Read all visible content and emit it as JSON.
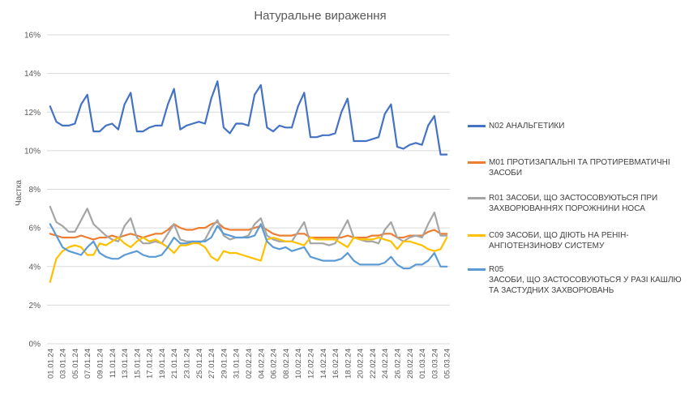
{
  "chart_data": {
    "type": "line",
    "title": "Натуральне вираження",
    "xlabel": "",
    "ylabel": "Частка",
    "ylim": [
      0,
      16
    ],
    "yticks": [
      "0%",
      "2%",
      "4%",
      "6%",
      "8%",
      "10%",
      "12%",
      "14%",
      "16%"
    ],
    "grid": true,
    "legend": "right",
    "x": [
      "01.01.2024",
      "02.01.2024",
      "03.01.2024",
      "04.01.2024",
      "05.01.2024",
      "06.01.2024",
      "07.01.2024",
      "08.01.2024",
      "09.01.2024",
      "10.01.2024",
      "11.01.2024",
      "12.01.2024",
      "13.01.2024",
      "14.01.2024",
      "15.01.2024",
      "16.01.2024",
      "17.01.2024",
      "18.01.2024",
      "19.01.2024",
      "20.01.2024",
      "21.01.2024",
      "22.01.2024",
      "23.01.2024",
      "24.01.2024",
      "25.01.2024",
      "26.01.2024",
      "27.01.2024",
      "28.01.2024",
      "29.01.2024",
      "30.01.2024",
      "31.01.2024",
      "01.02.2024",
      "02.02.2024",
      "03.02.2024",
      "04.02.2024",
      "05.02.2024",
      "06.02.2024",
      "07.02.2024",
      "08.02.2024",
      "09.02.2024",
      "10.02.2024",
      "11.02.2024",
      "12.02.2024",
      "13.02.2024",
      "14.02.2024",
      "15.02.2024",
      "16.02.2024",
      "17.02.2024",
      "18.02.2024",
      "19.02.2024",
      "20.02.2024",
      "21.02.2024",
      "22.02.2024",
      "23.02.2024",
      "24.02.2024",
      "25.02.2024",
      "26.02.2024",
      "27.02.2024",
      "28.02.2024",
      "29.02.2024",
      "01.03.2024",
      "02.03.2024",
      "03.03.2024",
      "04.03.2024",
      "05.03.2024"
    ],
    "x_tick_labels": [
      "01.01.24",
      "03.01.24",
      "05.01.24",
      "07.01.24",
      "09.01.24",
      "11.01.24",
      "13.01.24",
      "15.01.24",
      "17.01.24",
      "19.01.24",
      "21.01.24",
      "23.01.24",
      "25.01.24",
      "27.01.24",
      "29.01.24",
      "31.01.24",
      "02.02.24",
      "04.02.24",
      "06.02.24",
      "08.02.24",
      "10.02.24",
      "12.02.24",
      "14.02.24",
      "16.02.24",
      "18.02.24",
      "20.02.24",
      "22.02.24",
      "24.02.24",
      "26.02.24",
      "28.02.24",
      "01.03.24",
      "03.03.24",
      "05.03.24"
    ],
    "series": [
      {
        "name": "N02 АНАЛЬГЕТИКИ",
        "color": "#4472C4",
        "values": [
          12.3,
          11.5,
          11.3,
          11.3,
          11.4,
          12.4,
          12.9,
          11.0,
          11.0,
          11.3,
          11.4,
          11.1,
          12.4,
          13.0,
          11.0,
          11.0,
          11.2,
          11.3,
          11.3,
          12.4,
          13.2,
          11.1,
          11.3,
          11.4,
          11.5,
          11.4,
          12.7,
          13.6,
          11.2,
          10.9,
          11.4,
          11.4,
          11.3,
          12.9,
          13.4,
          11.2,
          11.0,
          11.3,
          11.2,
          11.2,
          12.3,
          13.0,
          10.7,
          10.7,
          10.8,
          10.8,
          10.9,
          12.0,
          12.7,
          10.5,
          10.5,
          10.5,
          10.6,
          10.7,
          11.9,
          12.4,
          10.2,
          10.1,
          10.3,
          10.4,
          10.3,
          11.3,
          11.8,
          9.8,
          9.8
        ]
      },
      {
        "name": "M01 ПРОТИЗАПАЛЬНІ ТА ПРОТИРЕВМАТИЧНІ ЗАСОБИ",
        "color": "#ED7D31",
        "values": [
          5.7,
          5.6,
          5.5,
          5.5,
          5.5,
          5.6,
          5.5,
          5.4,
          5.5,
          5.5,
          5.6,
          5.5,
          5.6,
          5.7,
          5.6,
          5.5,
          5.6,
          5.7,
          5.7,
          5.9,
          6.2,
          6.0,
          5.9,
          5.9,
          6.0,
          6.0,
          6.2,
          6.3,
          6.0,
          5.9,
          5.9,
          5.9,
          5.9,
          6.0,
          6.1,
          5.9,
          5.7,
          5.6,
          5.6,
          5.6,
          5.7,
          5.7,
          5.5,
          5.5,
          5.5,
          5.5,
          5.5,
          5.5,
          5.6,
          5.5,
          5.5,
          5.5,
          5.6,
          5.6,
          5.7,
          5.7,
          5.5,
          5.5,
          5.6,
          5.6,
          5.6,
          5.8,
          5.9,
          5.7,
          5.7
        ]
      },
      {
        "name": "R01 ЗАСОБИ, ЩО ЗАСТОСОВУЮТЬСЯ ПРИ ЗАХВОРЮВАННЯХ ПОРОЖНИНИ НОСА",
        "color": "#A5A5A5",
        "values": [
          7.1,
          6.3,
          6.1,
          5.8,
          5.8,
          6.4,
          7.0,
          6.2,
          5.9,
          5.6,
          5.4,
          5.3,
          6.1,
          6.5,
          5.5,
          5.2,
          5.2,
          5.3,
          5.2,
          5.7,
          6.2,
          5.4,
          5.3,
          5.3,
          5.2,
          5.4,
          6.0,
          6.4,
          5.6,
          5.4,
          5.5,
          5.5,
          5.6,
          6.2,
          6.5,
          5.6,
          5.4,
          5.3,
          5.3,
          5.3,
          5.8,
          6.3,
          5.2,
          5.2,
          5.2,
          5.1,
          5.2,
          5.8,
          6.4,
          5.5,
          5.4,
          5.3,
          5.3,
          5.2,
          5.9,
          6.3,
          5.5,
          5.3,
          5.5,
          5.6,
          5.5,
          6.2,
          6.8,
          5.6,
          5.6
        ]
      },
      {
        "name": "C09 ЗАСОБИ, ЩО ДІЮТЬ НА РЕНІН-АНГІОТЕНЗИНОВУ СИСТЕМУ",
        "color": "#FFC000",
        "values": [
          3.2,
          4.4,
          4.8,
          5.0,
          5.1,
          5.0,
          4.6,
          4.6,
          5.2,
          5.1,
          5.3,
          5.5,
          5.2,
          5.0,
          5.3,
          5.5,
          5.3,
          5.4,
          5.2,
          5.0,
          4.7,
          5.1,
          5.1,
          5.2,
          5.2,
          5.0,
          4.5,
          4.3,
          4.8,
          4.7,
          4.7,
          4.6,
          4.5,
          4.4,
          4.3,
          5.4,
          5.5,
          5.4,
          5.3,
          5.3,
          5.2,
          5.1,
          5.5,
          5.4,
          5.4,
          5.4,
          5.4,
          5.2,
          5.0,
          5.5,
          5.4,
          5.4,
          5.4,
          5.5,
          5.4,
          5.3,
          4.9,
          5.3,
          5.3,
          5.2,
          5.1,
          4.9,
          4.8,
          4.9,
          5.5
        ]
      },
      {
        "name": "R05\nЗАСОБИ, ЩО ЗАСТОСОВУЮТЬСЯ У РАЗІ КАШЛЮ ТА ЗАСТУДНИХ ЗАХВОРЮВАНЬ",
        "color": "#5B9BD5",
        "values": [
          6.2,
          5.6,
          5.0,
          4.8,
          4.7,
          4.6,
          5.0,
          5.3,
          4.7,
          4.5,
          4.4,
          4.4,
          4.6,
          4.7,
          4.8,
          4.6,
          4.5,
          4.5,
          4.6,
          5.0,
          5.5,
          5.2,
          5.2,
          5.3,
          5.3,
          5.3,
          5.5,
          6.1,
          5.7,
          5.6,
          5.5,
          5.5,
          5.5,
          5.6,
          6.2,
          5.3,
          5.0,
          4.9,
          5.0,
          4.8,
          4.9,
          5.0,
          4.5,
          4.4,
          4.3,
          4.3,
          4.3,
          4.4,
          4.7,
          4.3,
          4.1,
          4.1,
          4.1,
          4.1,
          4.2,
          4.5,
          4.1,
          3.9,
          3.9,
          4.1,
          4.1,
          4.3,
          4.7,
          4.0,
          4.0
        ]
      }
    ]
  }
}
